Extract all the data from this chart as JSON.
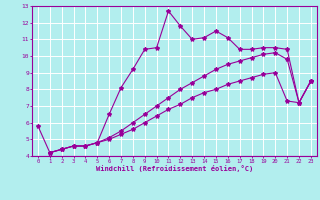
{
  "xlabel": "Windchill (Refroidissement éolien,°C)",
  "bg_color": "#b2eeee",
  "line_color": "#990099",
  "grid_color": "#ffffff",
  "xlim": [
    -0.5,
    23.5
  ],
  "ylim": [
    4,
    13
  ],
  "xticks": [
    0,
    1,
    2,
    3,
    4,
    5,
    6,
    7,
    8,
    9,
    10,
    11,
    12,
    13,
    14,
    15,
    16,
    17,
    18,
    19,
    20,
    21,
    22,
    23
  ],
  "yticks": [
    4,
    5,
    6,
    7,
    8,
    9,
    10,
    11,
    12,
    13
  ],
  "lines": [
    {
      "x": [
        0,
        1,
        2,
        3,
        4,
        5,
        6,
        7,
        8,
        9,
        10,
        11,
        12,
        13,
        14,
        15,
        16,
        17,
        18,
        19,
        20,
        21,
        22,
        23
      ],
      "y": [
        5.8,
        4.2,
        4.4,
        4.6,
        4.6,
        4.8,
        6.5,
        8.1,
        9.2,
        10.4,
        10.5,
        12.7,
        11.8,
        11.0,
        11.1,
        11.5,
        11.1,
        10.4,
        10.4,
        10.5,
        10.5,
        10.4,
        7.2,
        8.5
      ]
    },
    {
      "x": [
        1,
        2,
        3,
        4,
        5,
        6,
        7,
        8,
        9,
        10,
        11,
        12,
        13,
        14,
        15,
        16,
        17,
        18,
        19,
        20,
        21,
        22,
        23
      ],
      "y": [
        4.2,
        4.4,
        4.6,
        4.6,
        4.8,
        5.1,
        5.5,
        6.0,
        6.5,
        7.0,
        7.5,
        8.0,
        8.4,
        8.8,
        9.2,
        9.5,
        9.7,
        9.9,
        10.1,
        10.2,
        9.8,
        7.2,
        8.5
      ]
    },
    {
      "x": [
        1,
        2,
        3,
        4,
        5,
        6,
        7,
        8,
        9,
        10,
        11,
        12,
        13,
        14,
        15,
        16,
        17,
        18,
        19,
        20,
        21,
        22,
        23
      ],
      "y": [
        4.2,
        4.4,
        4.6,
        4.6,
        4.8,
        5.0,
        5.3,
        5.6,
        6.0,
        6.4,
        6.8,
        7.1,
        7.5,
        7.8,
        8.0,
        8.3,
        8.5,
        8.7,
        8.9,
        9.0,
        7.3,
        7.2,
        8.5
      ]
    }
  ]
}
